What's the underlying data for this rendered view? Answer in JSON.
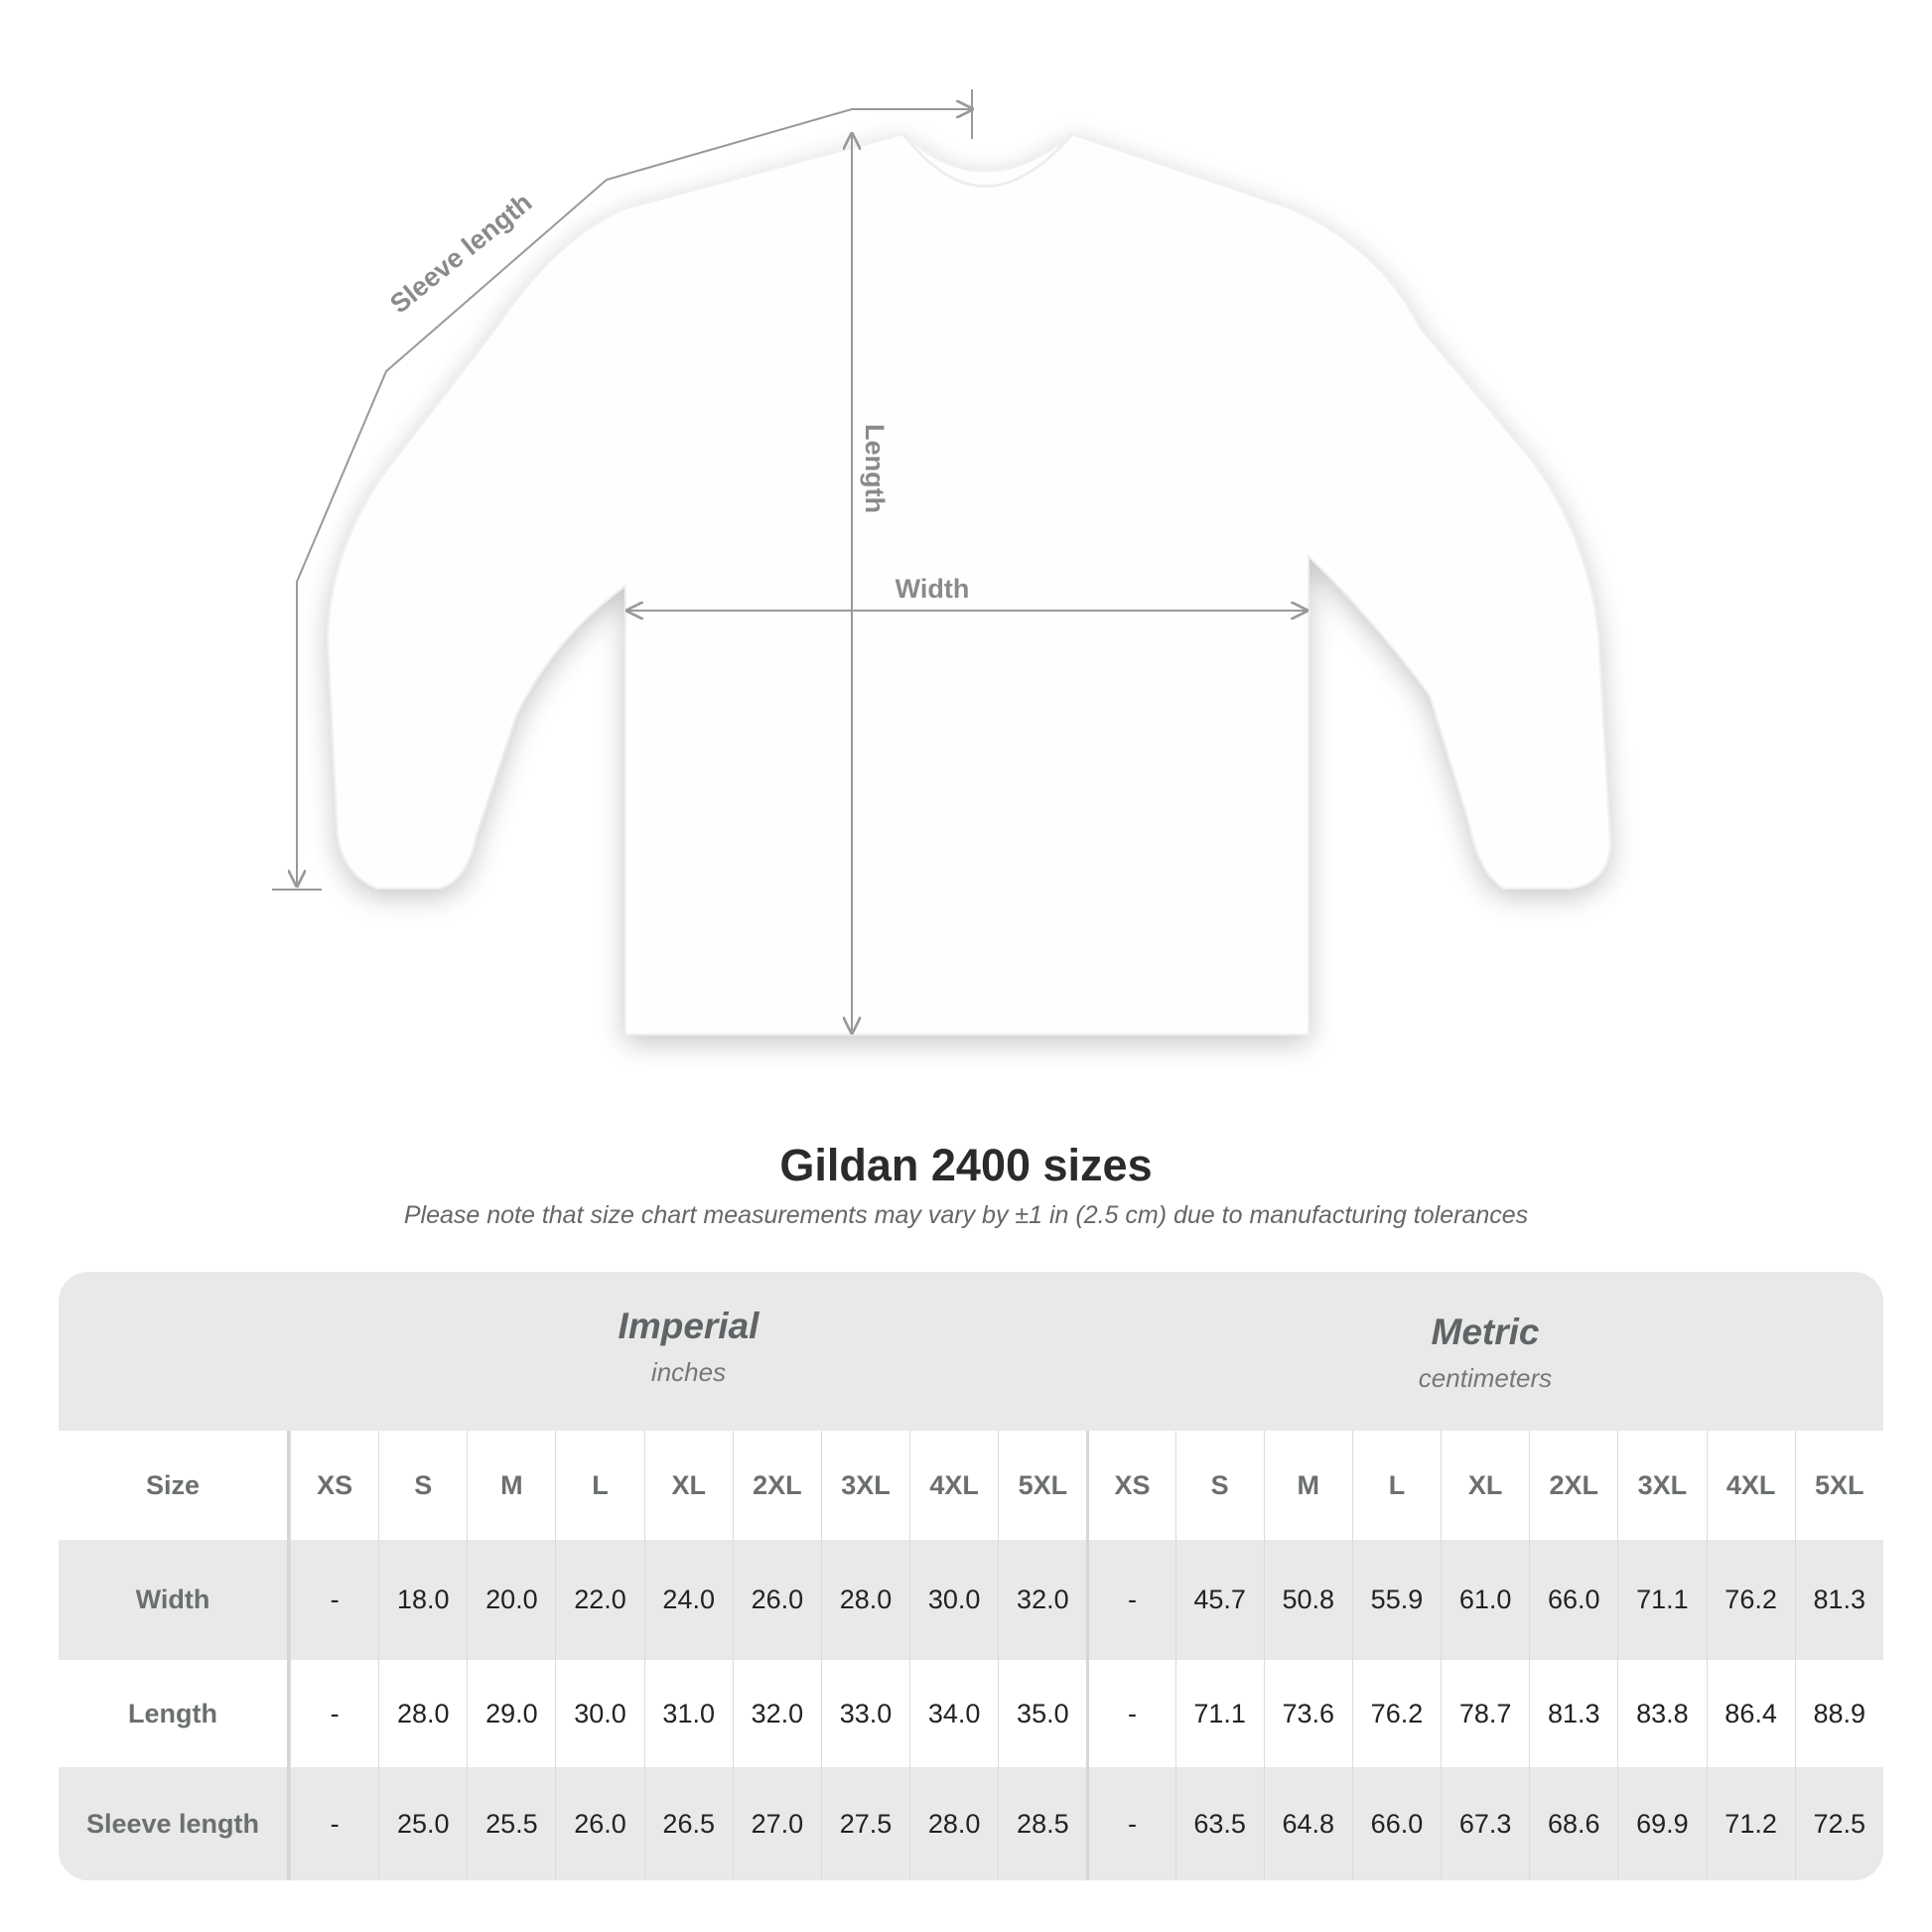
{
  "diagram": {
    "labels": {
      "sleeve": "Sleeve length",
      "length": "Length",
      "width": "Width"
    },
    "line_color": "#999999",
    "label_color": "#8a8a8a"
  },
  "title": "Gildan 2400 sizes",
  "subtitle": "Please note that size chart measurements may vary by ±1 in (2.5 cm) due to manufacturing tolerances",
  "table": {
    "imperial": {
      "name": "Imperial",
      "unit": "inches"
    },
    "metric": {
      "name": "Metric",
      "unit": "centimeters"
    },
    "size_label": "Size",
    "sizes": [
      "XS",
      "S",
      "M",
      "L",
      "XL",
      "2XL",
      "3XL",
      "4XL",
      "5XL"
    ],
    "rows": [
      {
        "label": "Width",
        "imperial": [
          "-",
          "18.0",
          "20.0",
          "22.0",
          "24.0",
          "26.0",
          "28.0",
          "30.0",
          "32.0"
        ],
        "metric": [
          "-",
          "45.7",
          "50.8",
          "55.9",
          "61.0",
          "66.0",
          "71.1",
          "76.2",
          "81.3"
        ]
      },
      {
        "label": "Length",
        "imperial": [
          "-",
          "28.0",
          "29.0",
          "30.0",
          "31.0",
          "32.0",
          "33.0",
          "34.0",
          "35.0"
        ],
        "metric": [
          "-",
          "71.1",
          "73.6",
          "76.2",
          "78.7",
          "81.3",
          "83.8",
          "86.4",
          "88.9"
        ]
      },
      {
        "label": "Sleeve length",
        "imperial": [
          "-",
          "25.0",
          "25.5",
          "26.0",
          "26.5",
          "27.0",
          "27.5",
          "28.0",
          "28.5"
        ],
        "metric": [
          "-",
          "63.5",
          "64.8",
          "66.0",
          "67.3",
          "68.6",
          "69.9",
          "71.2",
          "72.5"
        ]
      }
    ],
    "colors": {
      "shaded": "#e9e9e9",
      "white": "#ffffff"
    }
  }
}
